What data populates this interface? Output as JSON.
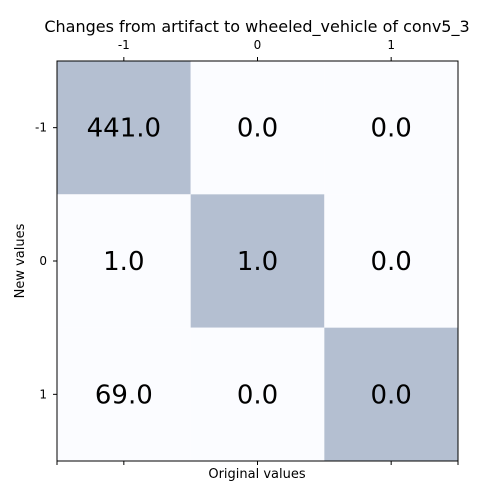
{
  "chart_data": {
    "type": "heatmap",
    "title": "Changes from artifact to wheeled_vehicle of conv5_3",
    "xlabel": "Original values",
    "ylabel": "New values",
    "x_categories": [
      "-1",
      "0",
      "1"
    ],
    "y_categories": [
      "-1",
      "0",
      "1"
    ],
    "x_ticks_position": "top-and-bottom",
    "values": [
      [
        "441.0",
        "0.0",
        "0.0"
      ],
      [
        "1.0",
        "1.0",
        "0.0"
      ],
      [
        "69.0",
        "0.0",
        "0.0"
      ]
    ],
    "highlight": "diagonal",
    "colors": {
      "highlight": "#b4bfd1",
      "background": "#fbfcff",
      "axis": "#000000"
    }
  }
}
